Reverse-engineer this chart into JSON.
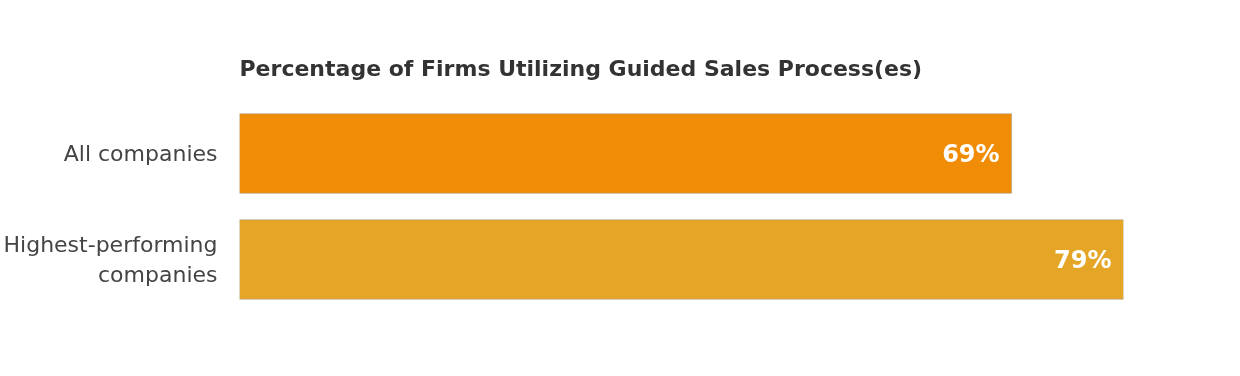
{
  "chart_data": {
    "type": "bar",
    "orientation": "horizontal",
    "title": "Percentage of Firms Utilizing Guided Sales Process(es)",
    "categories": [
      "All companies",
      "Highest-performing companies"
    ],
    "values": [
      69,
      79
    ],
    "colors": [
      "#f08c06",
      "#e5a628"
    ],
    "value_labels": [
      "69%",
      "79%"
    ],
    "grid": false,
    "tick_labels": "y"
  }
}
